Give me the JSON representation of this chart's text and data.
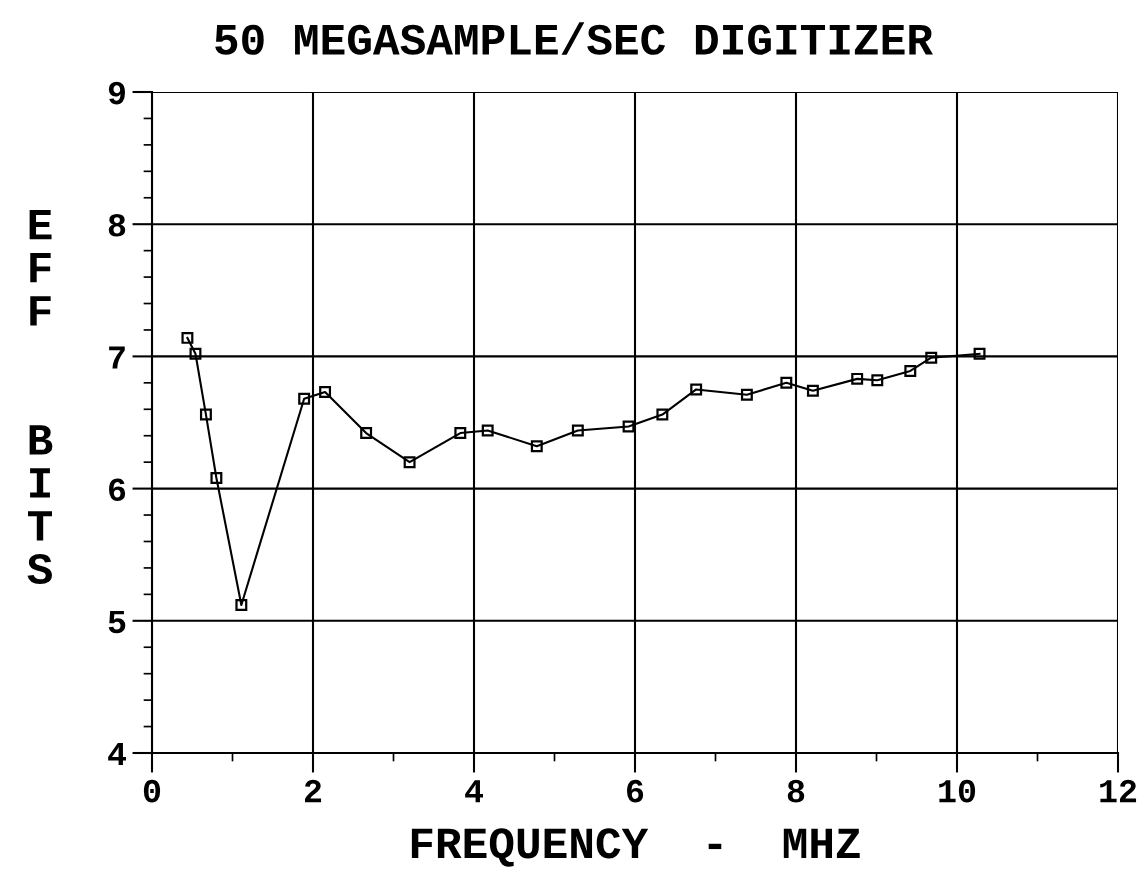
{
  "chart_data": {
    "type": "line",
    "title": "50 MEGASAMPLE/SEC DIGITIZER",
    "xlabel": "FREQUENCY  -  MHZ",
    "ylabel": "EFF  BITS",
    "x": [
      0.44,
      0.54,
      0.67,
      0.8,
      1.11,
      1.89,
      2.15,
      2.66,
      3.2,
      3.83,
      4.17,
      4.78,
      5.29,
      5.92,
      6.34,
      6.76,
      7.39,
      7.88,
      8.21,
      8.76,
      9.01,
      9.42,
      9.68,
      10.28
    ],
    "values": [
      7.14,
      7.02,
      6.56,
      6.08,
      5.12,
      6.68,
      6.73,
      6.42,
      6.2,
      6.42,
      6.44,
      6.32,
      6.44,
      6.47,
      6.56,
      6.75,
      6.71,
      6.8,
      6.74,
      6.83,
      6.82,
      6.89,
      6.99,
      7.02
    ],
    "color": "#000000",
    "marker": "square",
    "line_style": "solid",
    "grid": true,
    "xlim": [
      0,
      12
    ],
    "xticks": [
      0,
      2,
      4,
      6,
      8,
      10,
      12
    ],
    "ylim": [
      4,
      9
    ],
    "yticks": [
      4,
      5,
      6,
      7,
      8,
      9
    ]
  }
}
